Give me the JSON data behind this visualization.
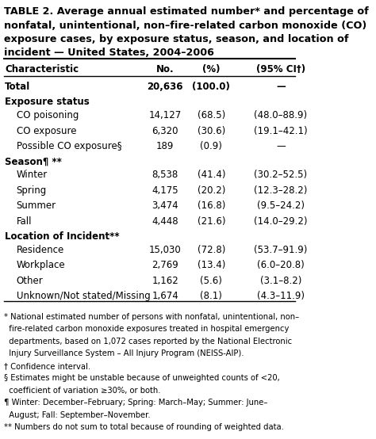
{
  "title": "TABLE 2. Average annual estimated number* and percentage of\nnonfatal, unintentional, non–fire-related carbon monoxide (CO)\nexposure cases, by exposure status, season, and location of\nincident — United States, 2004–2006",
  "col_headers": [
    "Characteristic",
    "No.",
    "(%)",
    "(95% CI†)"
  ],
  "rows": [
    {
      "label": "Total",
      "no": "20,636",
      "pct": "(100.0)",
      "ci": "—",
      "bold": true,
      "indent": 0,
      "is_header": false
    },
    {
      "label": "Exposure status",
      "no": "",
      "pct": "",
      "ci": "",
      "bold": true,
      "indent": 0,
      "is_header": true
    },
    {
      "label": "CO poisoning",
      "no": "14,127",
      "pct": "(68.5)",
      "ci": "(48.0–88.9)",
      "bold": false,
      "indent": 1,
      "is_header": false
    },
    {
      "label": "CO exposure",
      "no": "6,320",
      "pct": "(30.6)",
      "ci": "(19.1–42.1)",
      "bold": false,
      "indent": 1,
      "is_header": false
    },
    {
      "label": "Possible CO exposure§",
      "no": "189",
      "pct": "(0.9)",
      "ci": "—",
      "bold": false,
      "indent": 1,
      "is_header": false
    },
    {
      "label": "Season¶ **",
      "no": "",
      "pct": "",
      "ci": "",
      "bold": true,
      "indent": 0,
      "is_header": true
    },
    {
      "label": "Winter",
      "no": "8,538",
      "pct": "(41.4)",
      "ci": "(30.2–52.5)",
      "bold": false,
      "indent": 1,
      "is_header": false
    },
    {
      "label": "Spring",
      "no": "4,175",
      "pct": "(20.2)",
      "ci": "(12.3–28.2)",
      "bold": false,
      "indent": 1,
      "is_header": false
    },
    {
      "label": "Summer",
      "no": "3,474",
      "pct": "(16.8)",
      "ci": "(9.5–24.2)",
      "bold": false,
      "indent": 1,
      "is_header": false
    },
    {
      "label": "Fall",
      "no": "4,448",
      "pct": "(21.6)",
      "ci": "(14.0–29.2)",
      "bold": false,
      "indent": 1,
      "is_header": false
    },
    {
      "label": "Location of Incident**",
      "no": "",
      "pct": "",
      "ci": "",
      "bold": true,
      "indent": 0,
      "is_header": true
    },
    {
      "label": "Residence",
      "no": "15,030",
      "pct": "(72.8)",
      "ci": "(53.7–91.9)",
      "bold": false,
      "indent": 1,
      "is_header": false
    },
    {
      "label": "Workplace",
      "no": "2,769",
      "pct": "(13.4)",
      "ci": "(6.0–20.8)",
      "bold": false,
      "indent": 1,
      "is_header": false
    },
    {
      "label": "Other",
      "no": "1,162",
      "pct": "(5.6)",
      "ci": "(3.1–8.2)",
      "bold": false,
      "indent": 1,
      "is_header": false
    },
    {
      "label": "Unknown/Not stated/Missing",
      "no": "1,674",
      "pct": "(8.1)",
      "ci": "(4.3–11.9)",
      "bold": false,
      "indent": 1,
      "is_header": false
    }
  ],
  "footnotes": [
    "* National estimated number of persons with nonfatal, unintentional, non–",
    "  fire-related carbon monoxide exposures treated in hospital emergency",
    "  departments, based on 1,072 cases reported by the National Electronic",
    "  Injury Surveillance System – All Injury Program (NEISS-AIP).",
    "† Confidence interval.",
    "§ Estimates might be unstable because of unweighted counts of <20,",
    "  coefficient of variation ≥30%, or both.",
    "¶ Winter: December–February; Spring: March–May; Summer: June–",
    "  August; Fall: September–November.",
    "** Numbers do not sum to total because of rounding of weighted data."
  ],
  "bg_color": "#ffffff",
  "text_color": "#000000",
  "font_size": 8.5,
  "title_font_size": 9.2
}
